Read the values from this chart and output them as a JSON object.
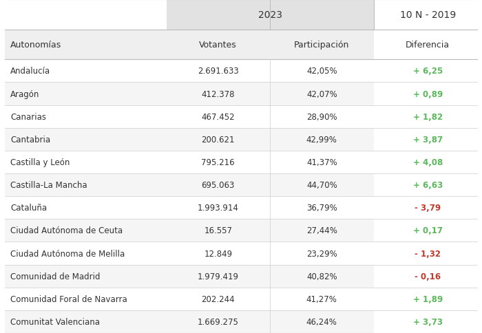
{
  "header_2023": "2023",
  "header_10n": "10 N - 2019",
  "col_headers": [
    "Autonomías",
    "Votantes",
    "Participación",
    "Diferencia"
  ],
  "rows": [
    [
      "Andalucía",
      "2.691.633",
      "42,05%",
      "+ 6,25",
      "green"
    ],
    [
      "Aragón",
      "412.378",
      "42,07%",
      "+ 0,89",
      "green"
    ],
    [
      "Canarias",
      "467.452",
      "28,90%",
      "+ 1,82",
      "green"
    ],
    [
      "Cantabria",
      "200.621",
      "42,99%",
      "+ 3,87",
      "green"
    ],
    [
      "Castilla y León",
      "795.216",
      "41,37%",
      "+ 4,08",
      "green"
    ],
    [
      "Castilla-La Mancha",
      "695.063",
      "44,70%",
      "+ 6,63",
      "green"
    ],
    [
      "Cataluña",
      "1.993.914",
      "36,79%",
      "- 3,79",
      "red"
    ],
    [
      "Ciudad Autónoma de Ceuta",
      "16.557",
      "27,44%",
      "+ 0,17",
      "green"
    ],
    [
      "Ciudad Autónoma de Melilla",
      "12.849",
      "23,29%",
      "- 1,32",
      "red"
    ],
    [
      "Comunidad de Madrid",
      "1.979.419",
      "40,82%",
      "- 0,16",
      "red"
    ],
    [
      "Comunidad Foral de Navarra",
      "202.244",
      "41,27%",
      "+ 1,89",
      "green"
    ],
    [
      "Comunitat Valenciana",
      "1.669.275",
      "46,24%",
      "+ 3,73",
      "green"
    ]
  ],
  "green_color": "#5cb85c",
  "red_color": "#c0392b",
  "subheader_bg": "#efefef",
  "row_bg_alt": "#f5f5f5",
  "row_bg_norm": "#ffffff",
  "text_color": "#333333",
  "border_color": "#cccccc",
  "top_header_bg": "#e2e2e2"
}
